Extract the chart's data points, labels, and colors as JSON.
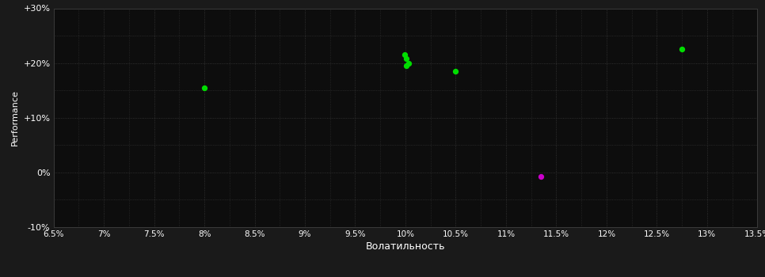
{
  "background_color": "#1a1a1a",
  "plot_bg_color": "#0d0d0d",
  "grid_color": "#3a3a3a",
  "text_color": "#ffffff",
  "xlabel": "Волатильность",
  "ylabel": "Performance",
  "xlim": [
    0.065,
    0.135
  ],
  "ylim": [
    -0.1,
    0.3
  ],
  "xticks": [
    0.065,
    0.07,
    0.075,
    0.08,
    0.085,
    0.09,
    0.095,
    0.1,
    0.105,
    0.11,
    0.115,
    0.12,
    0.125,
    0.13,
    0.135
  ],
  "yticks": [
    -0.1,
    0.0,
    0.1,
    0.2,
    0.3
  ],
  "ytick_labels": [
    "-10%",
    "0%",
    "+10%",
    "+20%",
    "+30%"
  ],
  "xtick_labels": [
    "6.5%",
    "7%",
    "7.5%",
    "8%",
    "8.5%",
    "9%",
    "9.5%",
    "10%",
    "10.5%",
    "11%",
    "11.5%",
    "12%",
    "12.5%",
    "13%",
    "13.5%"
  ],
  "minor_yticks": [
    -0.1,
    -0.05,
    0.0,
    0.05,
    0.1,
    0.15,
    0.2,
    0.25,
    0.3
  ],
  "green_points": [
    [
      0.0999,
      0.215
    ],
    [
      0.1001,
      0.208
    ],
    [
      0.1003,
      0.2
    ],
    [
      0.1001,
      0.195
    ],
    [
      0.105,
      0.185
    ],
    [
      0.08,
      0.155
    ],
    [
      0.1275,
      0.225
    ]
  ],
  "magenta_points": [
    [
      0.1135,
      -0.008
    ]
  ],
  "green_color": "#00dd00",
  "magenta_color": "#cc00cc",
  "marker_size": 18
}
